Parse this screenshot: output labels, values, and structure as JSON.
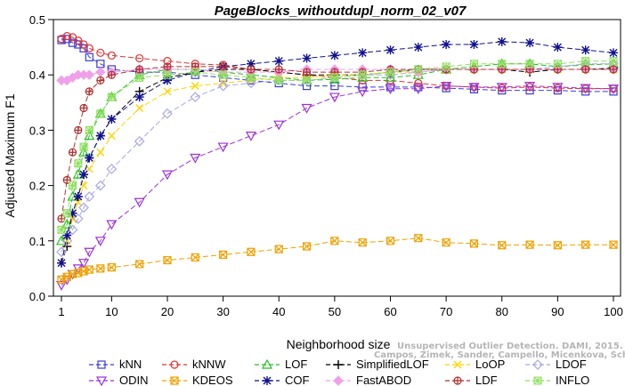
{
  "chart_data": {
    "type": "line",
    "title": "PageBlocks_withoutdupl_norm_02_v07",
    "xlabel": "Neighborhood size",
    "ylabel": "Adjusted Maximum F1",
    "xlim": [
      1,
      100
    ],
    "ylim": [
      0,
      0.5
    ],
    "xticks": [
      1,
      10,
      20,
      30,
      40,
      50,
      60,
      70,
      80,
      90,
      100
    ],
    "yticks": [
      0.0,
      0.1,
      0.2,
      0.3,
      0.4,
      0.5
    ],
    "ytick_labels": [
      "0.0",
      "0.1",
      "0.2",
      "0.3",
      "0.4",
      "0.5"
    ],
    "grid": false,
    "legend_position": "bottom",
    "x": [
      1,
      2,
      3,
      4,
      5,
      6,
      8,
      10,
      15,
      20,
      25,
      30,
      35,
      40,
      45,
      50,
      55,
      60,
      65,
      70,
      75,
      80,
      85,
      90,
      95,
      100
    ],
    "series": [
      {
        "name": "kNN",
        "color": "#3b3bd8",
        "marker": "square",
        "dash": "6,3",
        "values": [
          0.463,
          0.465,
          0.458,
          0.455,
          0.448,
          0.432,
          0.42,
          0.41,
          0.405,
          0.405,
          0.4,
          0.395,
          0.39,
          0.385,
          0.38,
          0.38,
          0.378,
          0.378,
          0.378,
          0.376,
          0.374,
          0.372,
          0.372,
          0.372,
          0.37,
          0.37
        ]
      },
      {
        "name": "kNNW",
        "color": "#e03030",
        "marker": "circle",
        "dash": "6,3",
        "values": [
          0.465,
          0.47,
          0.468,
          0.462,
          0.455,
          0.448,
          0.44,
          0.435,
          0.43,
          0.425,
          0.42,
          0.418,
          0.41,
          0.405,
          0.4,
          0.395,
          0.39,
          0.39,
          0.385,
          0.38,
          0.378,
          0.376,
          0.378,
          0.376,
          0.375,
          0.375
        ]
      },
      {
        "name": "LOF",
        "color": "#22c022",
        "marker": "triangle",
        "dash": "6,3",
        "values": [
          0.1,
          0.13,
          0.18,
          0.22,
          0.26,
          0.29,
          0.33,
          0.36,
          0.4,
          0.41,
          0.41,
          0.405,
          0.4,
          0.395,
          0.39,
          0.392,
          0.395,
          0.395,
          0.4,
          0.41,
          0.415,
          0.42,
          0.42,
          0.415,
          0.418,
          0.42
        ]
      },
      {
        "name": "SimplifiedLOF",
        "color": "#000000",
        "marker": "plus",
        "dash": "6,3",
        "values": [
          0.06,
          0.09,
          0.15,
          0.18,
          0.22,
          0.25,
          0.29,
          0.32,
          0.37,
          0.395,
          0.405,
          0.41,
          0.41,
          0.405,
          0.4,
          0.4,
          0.4,
          0.405,
          0.41,
          0.41,
          0.41,
          0.41,
          0.405,
          0.41,
          0.41,
          0.412
        ]
      },
      {
        "name": "LoOP",
        "color": "#ffd400",
        "marker": "x",
        "dash": "6,3",
        "values": [
          0.06,
          0.1,
          0.14,
          0.17,
          0.2,
          0.23,
          0.26,
          0.29,
          0.34,
          0.37,
          0.38,
          0.385,
          0.39,
          0.395,
          0.395,
          0.4,
          0.4,
          0.405,
          0.405,
          0.41,
          0.41,
          0.41,
          0.41,
          0.41,
          0.41,
          0.41
        ]
      },
      {
        "name": "LDOF",
        "color": "#a8a8e8",
        "marker": "diamond",
        "dash": "6,3",
        "values": [
          0.08,
          0.1,
          0.12,
          0.14,
          0.16,
          0.18,
          0.2,
          0.23,
          0.28,
          0.33,
          0.36,
          0.38,
          0.385,
          0.39,
          0.39,
          0.395,
          0.4,
          0.4,
          0.405,
          0.41,
          0.41,
          0.41,
          0.41,
          0.415,
          0.42,
          0.42
        ]
      },
      {
        "name": "ODIN",
        "color": "#9b30d8",
        "marker": "triangle-down",
        "dash": "6,3",
        "values": [
          0.02,
          0.03,
          0.04,
          0.05,
          0.06,
          0.08,
          0.1,
          0.13,
          0.17,
          0.22,
          0.25,
          0.27,
          0.29,
          0.31,
          0.34,
          0.36,
          0.37,
          0.375,
          0.375,
          0.38,
          0.378,
          0.378,
          0.38,
          0.378,
          0.376,
          0.375
        ]
      },
      {
        "name": "KDEOS",
        "color": "#f0a000",
        "marker": "square-x",
        "dash": "6,3",
        "values": [
          0.03,
          0.035,
          0.04,
          0.042,
          0.045,
          0.048,
          0.05,
          0.052,
          0.058,
          0.065,
          0.07,
          0.075,
          0.08,
          0.085,
          0.09,
          0.1,
          0.097,
          0.1,
          0.105,
          0.097,
          0.095,
          0.092,
          0.093,
          0.092,
          0.093,
          0.093
        ]
      },
      {
        "name": "COF",
        "color": "#101090",
        "marker": "star",
        "dash": "6,3",
        "values": [
          0.06,
          0.11,
          0.15,
          0.18,
          0.22,
          0.25,
          0.29,
          0.32,
          0.36,
          0.39,
          0.405,
          0.415,
          0.42,
          0.425,
          0.43,
          0.435,
          0.44,
          0.445,
          0.45,
          0.455,
          0.455,
          0.46,
          0.458,
          0.45,
          0.445,
          0.44
        ]
      },
      {
        "name": "FastABOD",
        "color": "#f0a0e8",
        "marker": "diamond-filled",
        "dash": "6,3",
        "values": [
          0.39,
          0.39,
          0.395,
          0.4,
          0.4,
          0.4,
          0.405,
          0.405,
          0.41,
          0.41,
          0.41,
          0.405,
          0.405,
          0.405,
          0.41,
          0.41,
          0.41,
          0.41,
          0.405,
          0.41,
          0.41,
          0.41,
          0.41,
          0.41,
          0.41,
          0.41
        ]
      },
      {
        "name": "LDF",
        "color": "#b03030",
        "marker": "circle-plus",
        "dash": "6,3",
        "values": [
          0.14,
          0.21,
          0.26,
          0.3,
          0.34,
          0.37,
          0.39,
          0.4,
          0.41,
          0.415,
          0.415,
          0.415,
          0.41,
          0.41,
          0.405,
          0.405,
          0.405,
          0.41,
          0.41,
          0.41,
          0.41,
          0.41,
          0.41,
          0.41,
          0.41,
          0.41
        ]
      },
      {
        "name": "INFLO",
        "color": "#90e060",
        "marker": "square-star",
        "dash": "6,3",
        "values": [
          0.12,
          0.15,
          0.2,
          0.24,
          0.27,
          0.3,
          0.33,
          0.36,
          0.395,
          0.4,
          0.405,
          0.4,
          0.395,
          0.39,
          0.39,
          0.395,
          0.4,
          0.405,
          0.41,
          0.415,
          0.42,
          0.42,
          0.42,
          0.42,
          0.425,
          0.425
        ]
      }
    ],
    "annotation": {
      "watermark_lines": [
        "Unsupervised Outlier Detection. DAMI, 2015.",
        "Campos, Zimek, Sander, Campello, Micenkova, Schubert, Assent, Houle"
      ]
    }
  }
}
